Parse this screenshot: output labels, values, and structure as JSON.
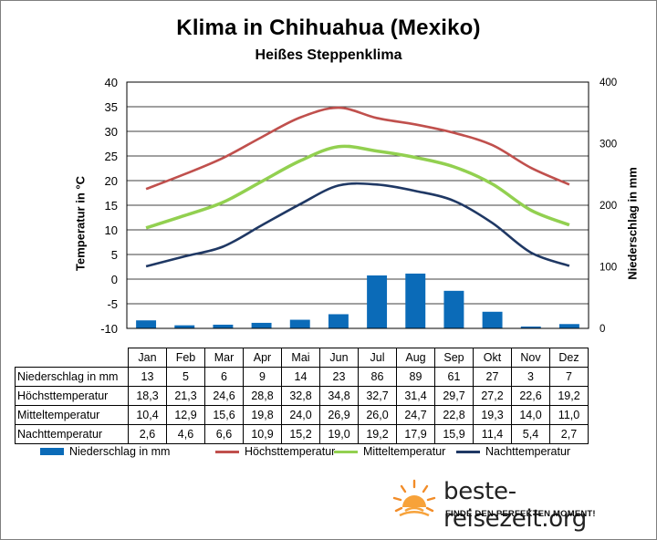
{
  "header": {
    "title": "Klima in Chihuahua (Mexiko)",
    "subtitle": "Heißes Steppenklima"
  },
  "colors": {
    "precip": "#0b6bb8",
    "max": "#c0504d",
    "mean": "#92d050",
    "min": "#1f3864",
    "grid": "#000000"
  },
  "chart_data": {
    "type": "bar+line",
    "categories": [
      "Jan",
      "Feb",
      "Mar",
      "Apr",
      "Mai",
      "Jun",
      "Jul",
      "Aug",
      "Sep",
      "Okt",
      "Nov",
      "Dez"
    ],
    "y_left": {
      "label": "Temperatur in °C",
      "min": -10,
      "max": 40,
      "step": 5,
      "ticks": [
        "40",
        "35",
        "30",
        "25",
        "20",
        "15",
        "10",
        "5",
        "0",
        "-5",
        "-10"
      ]
    },
    "y_right": {
      "label": "Niederschlag in mm",
      "min": 0,
      "max": 400,
      "step": 100,
      "ticks": [
        "400",
        "300",
        "200",
        "100",
        "0"
      ]
    },
    "grid": true,
    "legend_position": "bottom",
    "series": [
      {
        "name": "Niederschlag in mm",
        "type": "bar",
        "axis": "right",
        "values": [
          13,
          5,
          6,
          9,
          14,
          23,
          86,
          89,
          61,
          27,
          3,
          7
        ],
        "labels": [
          "13",
          "5",
          "6",
          "9",
          "14",
          "23",
          "86",
          "89",
          "61",
          "27",
          "3",
          "7"
        ]
      },
      {
        "name": "Höchsttemperatur",
        "type": "line",
        "axis": "left",
        "values": [
          18.3,
          21.3,
          24.6,
          28.8,
          32.8,
          34.8,
          32.7,
          31.4,
          29.7,
          27.2,
          22.6,
          19.2
        ],
        "labels": [
          "18,3",
          "21,3",
          "24,6",
          "28,8",
          "32,8",
          "34,8",
          "32,7",
          "31,4",
          "29,7",
          "27,2",
          "22,6",
          "19,2"
        ]
      },
      {
        "name": "Mitteltemperatur",
        "type": "line",
        "axis": "left",
        "values": [
          10.4,
          12.9,
          15.6,
          19.8,
          24.0,
          26.9,
          26.0,
          24.7,
          22.8,
          19.3,
          14.0,
          11.0
        ],
        "labels": [
          "10,4",
          "12,9",
          "15,6",
          "19,8",
          "24,0",
          "26,9",
          "26,0",
          "24,7",
          "22,8",
          "19,3",
          "14,0",
          "11,0"
        ]
      },
      {
        "name": "Nachttemperatur",
        "type": "line",
        "axis": "left",
        "values": [
          2.6,
          4.6,
          6.6,
          10.9,
          15.2,
          19.0,
          19.2,
          17.9,
          15.9,
          11.4,
          5.4,
          2.7
        ],
        "labels": [
          "2,6",
          "4,6",
          "6,6",
          "10,9",
          "15,2",
          "19,0",
          "19,2",
          "17,9",
          "15,9",
          "11,4",
          "5,4",
          "2,7"
        ]
      }
    ]
  },
  "table_rows": [
    {
      "label": "Niederschlag in mm"
    },
    {
      "label": "Höchsttemperatur"
    },
    {
      "label": "Mitteltemperatur"
    },
    {
      "label": "Nachttemperatur"
    }
  ],
  "brand": {
    "name": "beste-reisezeit.org",
    "tagline": "FINDE DEN PERFEKTEN MOMENT!",
    "logo_icon": "sun-logo-icon"
  }
}
